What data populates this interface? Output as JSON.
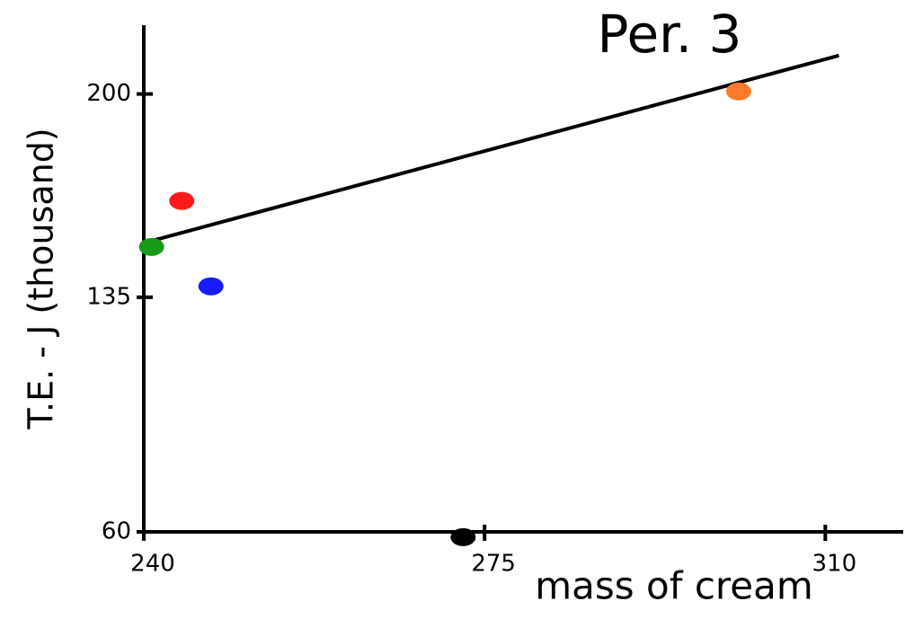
{
  "chart_data": {
    "type": "scatter",
    "title": "Per. 3",
    "x_label": "mass of cream",
    "y_label": "T.E. - J (thousand)",
    "points": [
      {
        "x": 243.9,
        "y": 165.8,
        "color": "#ff1a1a"
      },
      {
        "x": 240.8,
        "y": 151.1,
        "color": "#1a9a1a"
      },
      {
        "x": 246.9,
        "y": 138.5,
        "color": "#1a1aff"
      },
      {
        "x": 301.1,
        "y": 200.8,
        "color": "#ff7a2a"
      },
      {
        "x": 272.8,
        "y": 58.3,
        "color": "#000000"
      }
    ],
    "trend_line": {
      "x": [
        240.3,
        311.4
      ],
      "y": [
        152.6,
        212.3
      ]
    },
    "xlim": [
      240,
      318
    ],
    "ylim": [
      60,
      222
    ],
    "xticks": [
      240,
      275,
      310
    ],
    "yticks": [
      60,
      135,
      200
    ]
  }
}
